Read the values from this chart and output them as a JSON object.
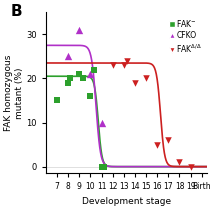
{
  "xlabel": "Development stage",
  "ylabel": "FAK homozygous\nmutant (%)",
  "xlim": [
    6.0,
    20.5
  ],
  "ylim": [
    -1.5,
    35
  ],
  "yticks": [
    0,
    10,
    20,
    30
  ],
  "fak_minus_color": "#2ca02c",
  "cfko_color": "#b030c8",
  "fak_delta_color": "#cc2020",
  "fak_minus_scatter": {
    "x": [
      7,
      8,
      8.2,
      9,
      9.3,
      10,
      10.3,
      11,
      11.2
    ],
    "y": [
      15,
      19,
      20,
      21,
      20,
      16,
      22,
      0,
      0
    ],
    "marker": "s",
    "size": 22
  },
  "cfko_scatter": {
    "x": [
      8,
      9,
      10,
      11
    ],
    "y": [
      25,
      31,
      21,
      10
    ],
    "marker": "^",
    "size": 28
  },
  "fak_delta_scatter": {
    "x": [
      12,
      13,
      13.3,
      14,
      15,
      16,
      17,
      18,
      19
    ],
    "y": [
      23,
      23,
      24,
      19,
      20,
      5,
      6,
      1,
      0
    ],
    "marker": "v",
    "size": 22
  },
  "fak_minus_curve": {
    "x0": 10.7,
    "k": 6,
    "plateau": 20.5
  },
  "cfko_curve": {
    "x0": 10.5,
    "k": 5,
    "plateau": 27.5
  },
  "fak_delta_curve": {
    "x0": 16.3,
    "k": 5.5,
    "plateau": 23.5
  },
  "background_color": "#ffffff"
}
